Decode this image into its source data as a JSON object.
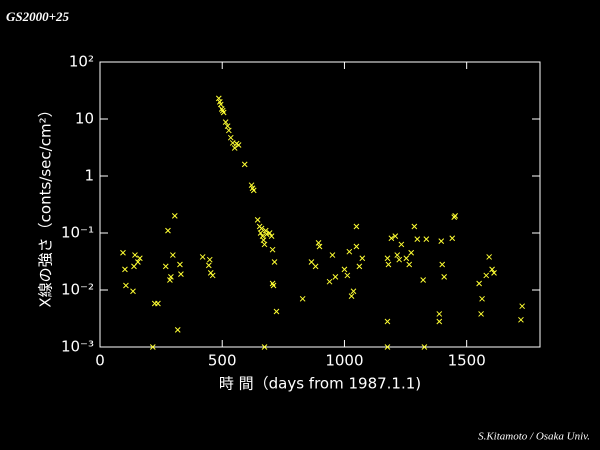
{
  "chart_data": {
    "type": "scatter",
    "title": "GS2000+25",
    "credit": "S.Kitamoto / Osaka Univ.",
    "x_label": "時 間（days from 1987.1.1)",
    "y_label": "X線の強さ（conts/sec/cm²）",
    "color": "#ffff33",
    "log_y": true,
    "xlim": [
      0,
      1800
    ],
    "xticks": [
      0,
      500,
      1000,
      1500
    ],
    "ylim": [
      0.001,
      100
    ],
    "yticks": [
      {
        "value": 0.001,
        "label": "10⁻³"
      },
      {
        "value": 0.01,
        "label": "10⁻²"
      },
      {
        "value": 0.1,
        "label": "10⁻¹"
      },
      1,
      10,
      {
        "value": 100,
        "label": "10²"
      }
    ],
    "x": [
      94,
      102,
      106,
      135,
      143,
      155,
      163,
      139,
      216,
      224,
      237,
      269,
      278,
      290,
      298,
      306,
      286,
      318,
      327,
      331,
      420,
      449,
      453,
      461,
      445,
      486,
      490,
      494,
      498,
      502,
      506,
      514,
      522,
      527,
      535,
      543,
      551,
      559,
      567,
      592,
      620,
      624,
      629,
      645,
      653,
      657,
      661,
      665,
      669,
      673,
      678,
      682,
      694,
      702,
      706,
      714,
      706,
      710,
      673,
      722,
      829,
      865,
      882,
      894,
      898,
      939,
      951,
      963,
      1000,
      1012,
      1020,
      1029,
      1037,
      1049,
      1049,
      1061,
      1073,
      1176,
      1176,
      1176,
      1180,
      1192,
      1208,
      1216,
      1224,
      1233,
      1253,
      1265,
      1273,
      1286,
      1298,
      1322,
      1327,
      1335,
      1388,
      1388,
      1396,
      1400,
      1408,
      1441,
      1449,
      1453,
      1551,
      1559,
      1563,
      1580,
      1592,
      1604,
      1612,
      1722,
      1727
    ],
    "values": [
      0.045,
      0.023,
      0.012,
      0.0095,
      0.041,
      0.031,
      0.036,
      0.026,
      0.001,
      0.0058,
      0.0058,
      0.026,
      0.11,
      0.017,
      0.041,
      0.2,
      0.015,
      0.002,
      0.028,
      0.019,
      0.038,
      0.034,
      0.02,
      0.018,
      0.027,
      23,
      20,
      18,
      15,
      14,
      13,
      8.8,
      7.5,
      6.3,
      4.7,
      3.8,
      3.1,
      3.7,
      3.5,
      1.6,
      0.69,
      0.61,
      0.56,
      0.17,
      0.13,
      0.1,
      0.12,
      0.088,
      0.075,
      0.063,
      0.11,
      0.095,
      0.1,
      0.088,
      0.051,
      0.031,
      0.013,
      0.012,
      0.001,
      0.0042,
      0.007,
      0.031,
      0.026,
      0.067,
      0.058,
      0.014,
      0.041,
      0.017,
      0.023,
      0.018,
      0.047,
      0.0078,
      0.0095,
      0.13,
      0.058,
      0.026,
      0.036,
      0.0028,
      0.001,
      0.036,
      0.028,
      0.081,
      0.088,
      0.041,
      0.034,
      0.063,
      0.036,
      0.028,
      0.045,
      0.13,
      0.078,
      0.015,
      0.001,
      0.078,
      0.0028,
      0.0038,
      0.072,
      0.028,
      0.017,
      0.081,
      0.19,
      0.2,
      0.013,
      0.0038,
      0.007,
      0.018,
      0.038,
      0.023,
      0.02,
      0.003,
      0.0052
    ]
  }
}
